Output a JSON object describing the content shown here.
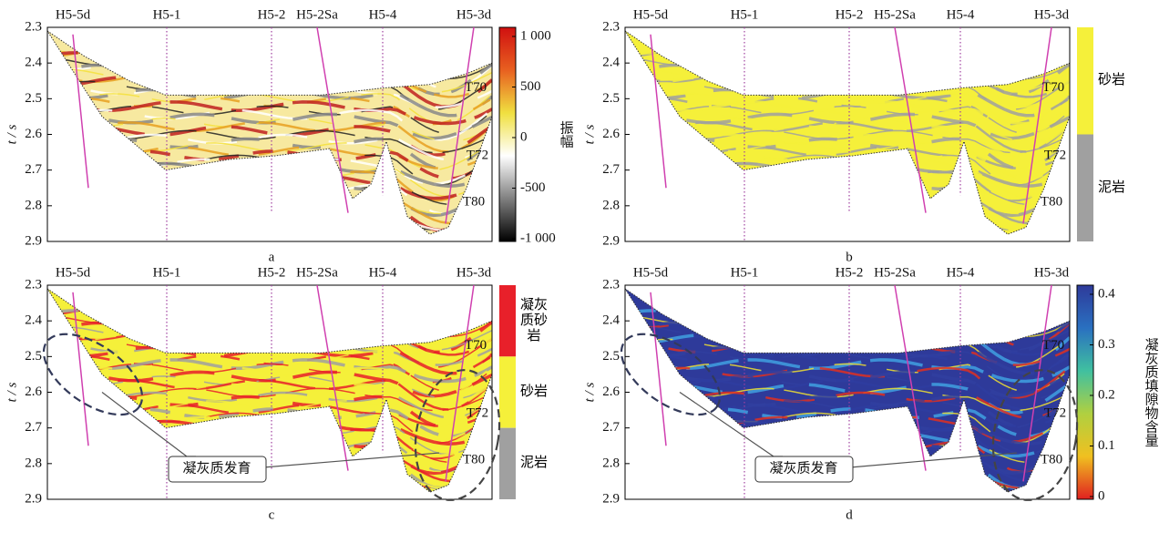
{
  "yaxis_label": "t / s",
  "ylim": [
    2.3,
    2.9
  ],
  "yticks": [
    2.3,
    2.4,
    2.5,
    2.6,
    2.7,
    2.8,
    2.9
  ],
  "wells": [
    "H5-5d",
    "H5-1",
    "H5-2",
    "H5-2Sa",
    "H5-4",
    "H5-3d"
  ],
  "horizons": [
    "T70",
    "T72",
    "T80"
  ],
  "panels": [
    {
      "label": "a",
      "style": "amplitude",
      "colorbar": {
        "title": "振幅",
        "ticks": [
          {
            "value": 1000,
            "label": "1 000"
          },
          500,
          0,
          -500,
          {
            "value": -1000,
            "label": "-1 000"
          }
        ]
      }
    },
    {
      "label": "b",
      "style": "lithology",
      "colorbar": {
        "categories": [
          "砂岩",
          "泥岩"
        ],
        "colors": [
          "#f5f03a",
          "#a0a0a0"
        ]
      }
    },
    {
      "label": "c",
      "style": "tuff",
      "colorbar": {
        "categories": [
          "凝灰质砂岩",
          "砂岩",
          "泥岩"
        ],
        "colors": [
          "#e8202a",
          "#f5f03a",
          "#a0a0a0"
        ]
      },
      "annotation": "凝灰质发育"
    },
    {
      "label": "d",
      "style": "content",
      "colorbar": {
        "title": "凝灰质填隙物含量",
        "ticks": [
          0.4,
          0.3,
          0.2,
          0.1,
          0
        ]
      },
      "annotation": "凝灰质发育"
    }
  ]
}
